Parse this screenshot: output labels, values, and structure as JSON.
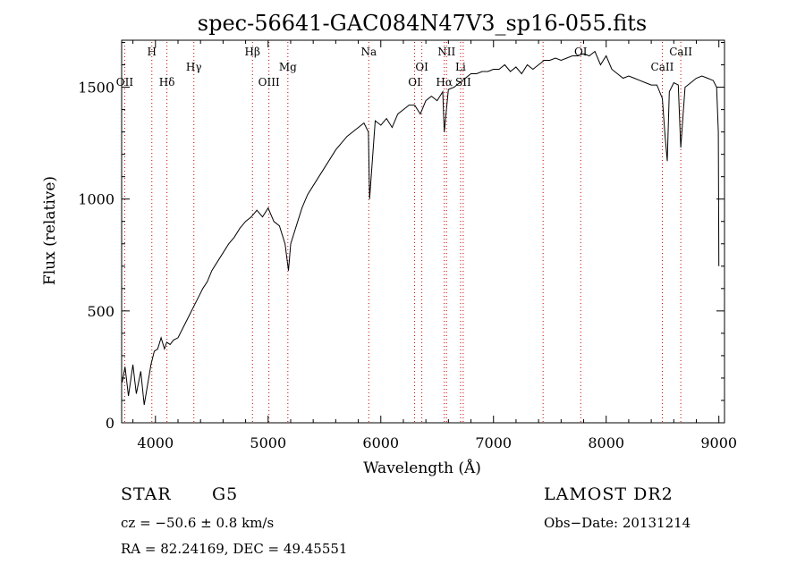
{
  "chart_data": {
    "type": "line",
    "title": "spec-56641-GAC084N47V3_sp16-055.fits",
    "xlabel": "Wavelength (Å)",
    "ylabel": "Flux (relative)",
    "xlim": [
      3700,
      9050
    ],
    "ylim": [
      0,
      1710
    ],
    "xticks": [
      4000,
      5000,
      6000,
      7000,
      8000,
      9000
    ],
    "yticks": [
      0,
      500,
      1000,
      1500
    ],
    "grid": false,
    "series": [
      {
        "x": [
          3705,
          3730,
          3760,
          3800,
          3830,
          3870,
          3900,
          3930,
          3960,
          3990,
          4020,
          4050,
          4080,
          4100,
          4130,
          4160,
          4200,
          4250,
          4300,
          4340,
          4380,
          4420,
          4460,
          4500,
          4550,
          4600,
          4650,
          4700,
          4750,
          4800,
          4850,
          4900,
          4950,
          5000,
          5050,
          5100,
          5150,
          5180,
          5200,
          5250,
          5300,
          5350,
          5400,
          5450,
          5500,
          5550,
          5600,
          5650,
          5700,
          5750,
          5800,
          5850,
          5890,
          5900,
          5950,
          6000,
          6050,
          6100,
          6150,
          6200,
          6250,
          6300,
          6350,
          6400,
          6450,
          6500,
          6550,
          6563,
          6600,
          6650,
          6700,
          6750,
          6800,
          6850,
          6900,
          6950,
          7000,
          7050,
          7100,
          7150,
          7200,
          7250,
          7300,
          7350,
          7400,
          7450,
          7500,
          7550,
          7600,
          7650,
          7700,
          7750,
          7800,
          7850,
          7900,
          7950,
          8000,
          8050,
          8100,
          8150,
          8200,
          8250,
          8300,
          8350,
          8400,
          8450,
          8498,
          8520,
          8542,
          8560,
          8600,
          8640,
          8662,
          8700,
          8750,
          8800,
          8850,
          8900,
          8950,
          8980,
          8995,
          9000
        ],
        "values": [
          180,
          250,
          120,
          260,
          130,
          230,
          80,
          170,
          260,
          320,
          330,
          380,
          330,
          360,
          350,
          370,
          380,
          430,
          480,
          520,
          560,
          600,
          630,
          680,
          720,
          760,
          800,
          830,
          870,
          900,
          920,
          950,
          920,
          960,
          900,
          880,
          800,
          680,
          800,
          880,
          960,
          1020,
          1060,
          1100,
          1140,
          1180,
          1220,
          1250,
          1280,
          1300,
          1320,
          1340,
          1300,
          1000,
          1350,
          1330,
          1360,
          1320,
          1380,
          1400,
          1420,
          1420,
          1380,
          1440,
          1460,
          1440,
          1480,
          1300,
          1490,
          1500,
          1520,
          1540,
          1560,
          1560,
          1570,
          1570,
          1580,
          1580,
          1600,
          1570,
          1590,
          1560,
          1600,
          1580,
          1600,
          1620,
          1620,
          1630,
          1620,
          1630,
          1640,
          1640,
          1650,
          1640,
          1660,
          1600,
          1640,
          1580,
          1560,
          1540,
          1550,
          1540,
          1530,
          1520,
          1510,
          1510,
          1450,
          1300,
          1170,
          1480,
          1520,
          1510,
          1230,
          1500,
          1520,
          1540,
          1550,
          1540,
          1530,
          1500,
          1300,
          700
        ]
      }
    ],
    "spectral_lines": [
      {
        "label": "OII",
        "wavelength": 3727,
        "row": "low"
      },
      {
        "label": "H",
        "wavelength": 3968,
        "row": "high"
      },
      {
        "label": "Hδ",
        "wavelength": 4102,
        "row": "low"
      },
      {
        "label": "Hγ",
        "wavelength": 4341,
        "row": "mid"
      },
      {
        "label": "Hβ",
        "wavelength": 4861,
        "row": "high"
      },
      {
        "label": "OIII",
        "wavelength": 5007,
        "row": "low"
      },
      {
        "label": "Mg",
        "wavelength": 5175,
        "row": "mid"
      },
      {
        "label": "Na",
        "wavelength": 5893,
        "row": "high"
      },
      {
        "label": "OI",
        "wavelength": 6300,
        "row": "low"
      },
      {
        "label": "OI",
        "wavelength": 6364,
        "row": "mid"
      },
      {
        "label": "NII",
        "wavelength": 6583,
        "row": "high"
      },
      {
        "label": "Hα",
        "wavelength": 6563,
        "row": "low"
      },
      {
        "label": "Li",
        "wavelength": 6708,
        "row": "mid"
      },
      {
        "label": "SII",
        "wavelength": 6731,
        "row": "low"
      },
      {
        "label": "",
        "wavelength": 7440,
        "row": "none"
      },
      {
        "label": "OI",
        "wavelength": 7774,
        "row": "high"
      },
      {
        "label": "CaII",
        "wavelength": 8498,
        "row": "mid"
      },
      {
        "label": "CaII",
        "wavelength": 8662,
        "row": "high"
      }
    ]
  },
  "footer": {
    "object_class": "STAR",
    "subclass": "G5",
    "cz": "cz = −50.6 ± 0.8 km/s",
    "coords": "RA =  82.24169, DEC =  49.45551",
    "survey": "LAMOST DR2",
    "obs_date": "Obs−Date: 20131214"
  }
}
